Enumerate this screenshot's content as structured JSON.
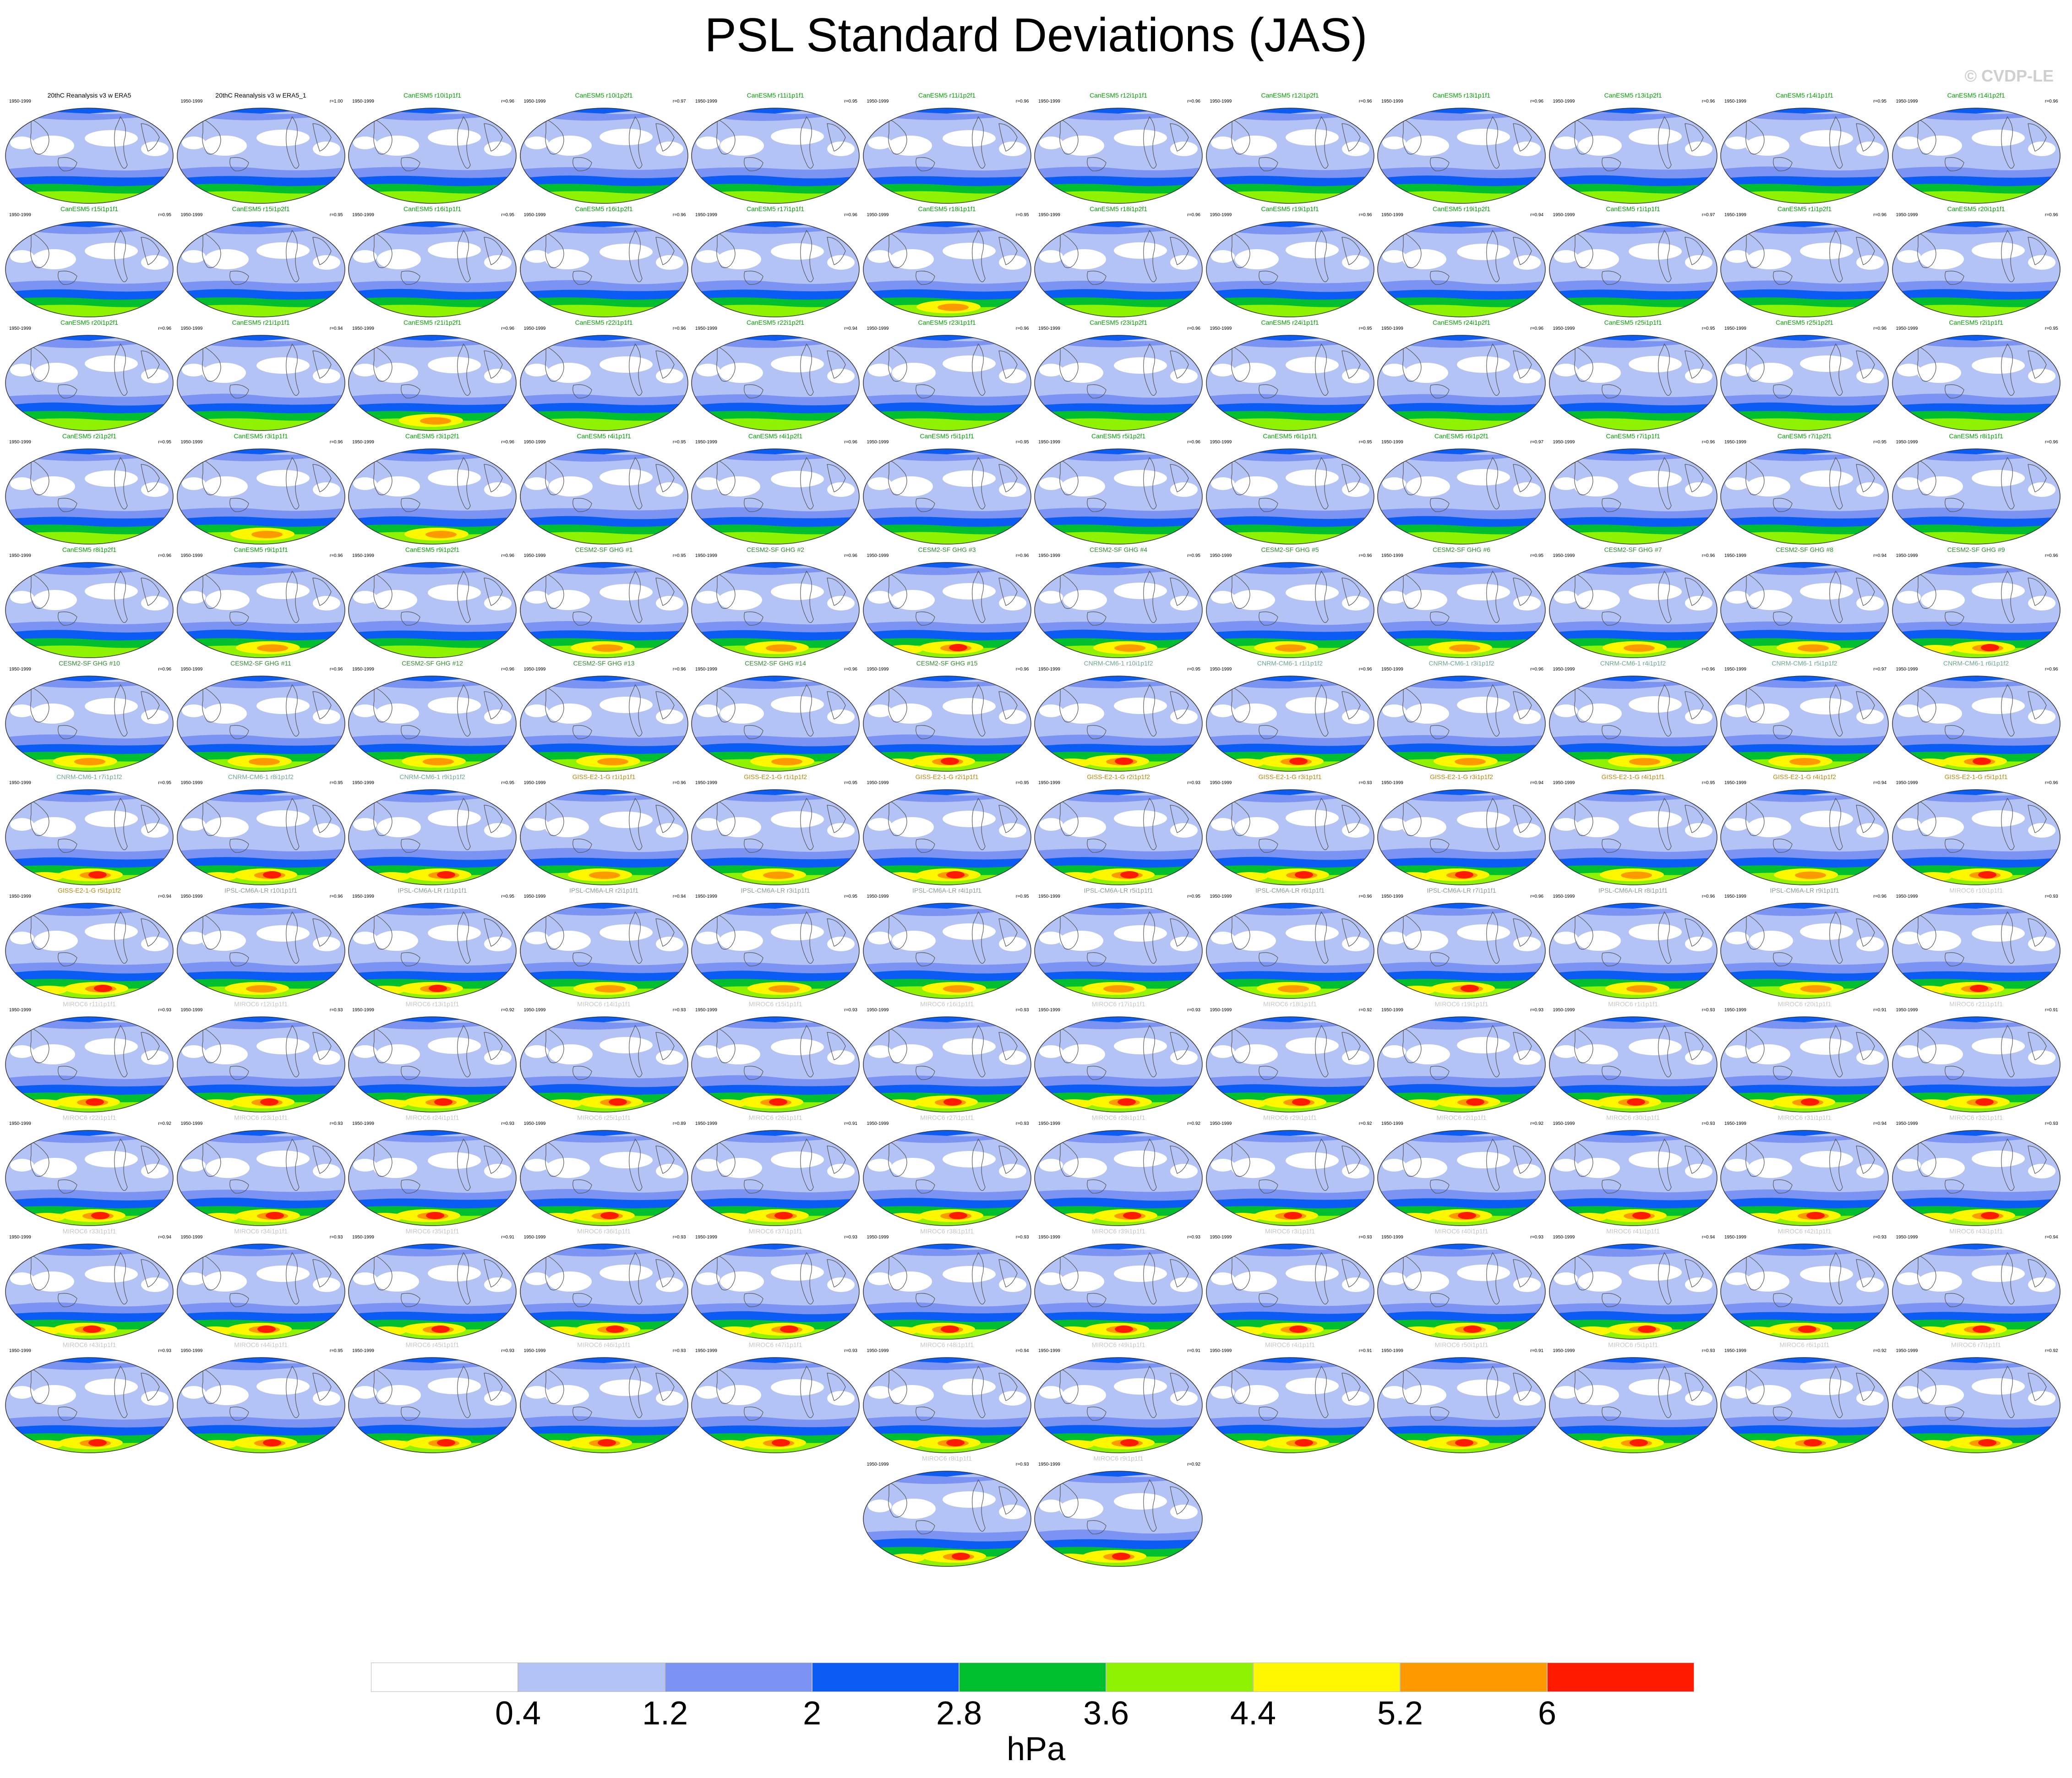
{
  "title": "PSL Standard Deviations (JAS)",
  "copyright": "© CVDP-LE",
  "years": "1950-1999",
  "colorbar": {
    "colors": [
      "#ffffff",
      "#b4c3f5",
      "#7b93f2",
      "#0a5cf5",
      "#00bf2f",
      "#8ef200",
      "#fff700",
      "#ff9900",
      "#ff1a00"
    ],
    "ticks": [
      "0.4",
      "1.2",
      "2",
      "2.8",
      "3.6",
      "4.4",
      "5.2",
      "6"
    ],
    "units": "hPa"
  },
  "panels": [
    {
      "title": "20thC Reanalysis v3 w ERA5",
      "r": "",
      "tc": "#000000",
      "sev": 0
    },
    {
      "title": "20thC Reanalysis v3 w ERA5_1",
      "r": "r=1.00",
      "tc": "#000000",
      "sev": 0
    },
    {
      "title": "CanESM5 r10i1p1f1",
      "r": "r=0.96",
      "tc": "#00a000",
      "sev": 0
    },
    {
      "title": "CanESM5 r10i1p2f1",
      "r": "r=0.97",
      "tc": "#00a000",
      "sev": 0
    },
    {
      "title": "CanESM5 r11i1p1f1",
      "r": "r=0.95",
      "tc": "#00a000",
      "sev": 0
    },
    {
      "title": "CanESM5 r11i1p2f1",
      "r": "r=0.96",
      "tc": "#00a000",
      "sev": 0
    },
    {
      "title": "CanESM5 r12i1p1f1",
      "r": "r=0.96",
      "tc": "#00a000",
      "sev": 0
    },
    {
      "title": "CanESM5 r12i1p2f1",
      "r": "r=0.96",
      "tc": "#00a000",
      "sev": 0
    },
    {
      "title": "CanESM5 r13i1p1f1",
      "r": "r=0.96",
      "tc": "#00a000",
      "sev": 0
    },
    {
      "title": "CanESM5 r13i1p2f1",
      "r": "r=0.96",
      "tc": "#00a000",
      "sev": 0
    },
    {
      "title": "CanESM5 r14i1p1f1",
      "r": "r=0.95",
      "tc": "#00a000",
      "sev": 0
    },
    {
      "title": "CanESM5 r14i1p2f1",
      "r": "r=0.96",
      "tc": "#00a000",
      "sev": 0
    },
    {
      "title": "CanESM5 r15i1p1f1",
      "r": "r=0.95",
      "tc": "#00a000",
      "sev": 0
    },
    {
      "title": "CanESM5 r15i1p2f1",
      "r": "r=0.95",
      "tc": "#00a000",
      "sev": 0
    },
    {
      "title": "CanESM5 r16i1p1f1",
      "r": "r=0.95",
      "tc": "#00a000",
      "sev": 0
    },
    {
      "title": "CanESM5 r16i1p2f1",
      "r": "r=0.96",
      "tc": "#00a000",
      "sev": 0
    },
    {
      "title": "CanESM5 r17i1p1f1",
      "r": "r=0.96",
      "tc": "#00a000",
      "sev": 0
    },
    {
      "title": "CanESM5 r18i1p1f1",
      "r": "r=0.95",
      "tc": "#00a000",
      "sev": 1
    },
    {
      "title": "CanESM5 r18i1p2f1",
      "r": "r=0.96",
      "tc": "#00a000",
      "sev": 0
    },
    {
      "title": "CanESM5 r19i1p1f1",
      "r": "r=0.96",
      "tc": "#00a000",
      "sev": 0
    },
    {
      "title": "CanESM5 r19i1p2f1",
      "r": "r=0.94",
      "tc": "#00a000",
      "sev": 0
    },
    {
      "title": "CanESM5 r1i1p1f1",
      "r": "r=0.97",
      "tc": "#00a000",
      "sev": 0
    },
    {
      "title": "CanESM5 r1i1p2f1",
      "r": "r=0.96",
      "tc": "#00a000",
      "sev": 0
    },
    {
      "title": "CanESM5 r20i1p1f1",
      "r": "r=0.96",
      "tc": "#00a000",
      "sev": 0
    },
    {
      "title": "CanESM5 r20i1p2f1",
      "r": "r=0.96",
      "tc": "#00a000",
      "sev": 0
    },
    {
      "title": "CanESM5 r21i1p1f1",
      "r": "r=0.94",
      "tc": "#00a000",
      "sev": 0
    },
    {
      "title": "CanESM5 r21i1p2f1",
      "r": "r=0.96",
      "tc": "#00a000",
      "sev": 1
    },
    {
      "title": "CanESM5 r22i1p1f1",
      "r": "r=0.96",
      "tc": "#00a000",
      "sev": 0
    },
    {
      "title": "CanESM5 r22i1p2f1",
      "r": "r=0.94",
      "tc": "#00a000",
      "sev": 0
    },
    {
      "title": "CanESM5 r23i1p1f1",
      "r": "r=0.96",
      "tc": "#00a000",
      "sev": 0
    },
    {
      "title": "CanESM5 r23i1p2f1",
      "r": "r=0.96",
      "tc": "#00a000",
      "sev": 0
    },
    {
      "title": "CanESM5 r24i1p1f1",
      "r": "r=0.95",
      "tc": "#00a000",
      "sev": 0
    },
    {
      "title": "CanESM5 r24i1p2f1",
      "r": "r=0.96",
      "tc": "#00a000",
      "sev": 0
    },
    {
      "title": "CanESM5 r25i1p1f1",
      "r": "r=0.95",
      "tc": "#00a000",
      "sev": 0
    },
    {
      "title": "CanESM5 r25i1p2f1",
      "r": "r=0.96",
      "tc": "#00a000",
      "sev": 0
    },
    {
      "title": "CanESM5 r2i1p1f1",
      "r": "r=0.95",
      "tc": "#00a000",
      "sev": 0
    },
    {
      "title": "CanESM5 r2i1p2f1",
      "r": "r=0.95",
      "tc": "#00a000",
      "sev": 0
    },
    {
      "title": "CanESM5 r3i1p1f1",
      "r": "r=0.96",
      "tc": "#00a000",
      "sev": 1
    },
    {
      "title": "CanESM5 r3i1p2f1",
      "r": "r=0.96",
      "tc": "#00a000",
      "sev": 1
    },
    {
      "title": "CanESM5 r4i1p1f1",
      "r": "r=0.95",
      "tc": "#00a000",
      "sev": 0
    },
    {
      "title": "CanESM5 r4i1p2f1",
      "r": "r=0.96",
      "tc": "#00a000",
      "sev": 0
    },
    {
      "title": "CanESM5 r5i1p1f1",
      "r": "r=0.95",
      "tc": "#00a000",
      "sev": 0
    },
    {
      "title": "CanESM5 r5i1p2f1",
      "r": "r=0.96",
      "tc": "#00a000",
      "sev": 0
    },
    {
      "title": "CanESM5 r6i1p1f1",
      "r": "r=0.95",
      "tc": "#00a000",
      "sev": 0
    },
    {
      "title": "CanESM5 r6i1p2f1",
      "r": "r=0.97",
      "tc": "#00a000",
      "sev": 0
    },
    {
      "title": "CanESM5 r7i1p1f1",
      "r": "r=0.96",
      "tc": "#00a000",
      "sev": 0
    },
    {
      "title": "CanESM5 r7i1p2f1",
      "r": "r=0.95",
      "tc": "#00a000",
      "sev": 0
    },
    {
      "title": "CanESM5 r8i1p1f1",
      "r": "r=0.96",
      "tc": "#00a000",
      "sev": 0
    },
    {
      "title": "CanESM5 r8i1p2f1",
      "r": "r=0.96",
      "tc": "#00a000",
      "sev": 0
    },
    {
      "title": "CanESM5 r9i1p1f1",
      "r": "r=0.96",
      "tc": "#00a000",
      "sev": 1
    },
    {
      "title": "CanESM5 r9i1p2f1",
      "r": "r=0.96",
      "tc": "#00a000",
      "sev": 0
    },
    {
      "title": "CESM2-SF GHG #1",
      "r": "r=0.95",
      "tc": "#2e8b2e",
      "sev": 1
    },
    {
      "title": "CESM2-SF GHG #2",
      "r": "r=0.96",
      "tc": "#2e8b2e",
      "sev": 1
    },
    {
      "title": "CESM2-SF GHG #3",
      "r": "r=0.96",
      "tc": "#2e8b2e",
      "sev": 2
    },
    {
      "title": "CESM2-SF GHG #4",
      "r": "r=0.95",
      "tc": "#2e8b2e",
      "sev": 1
    },
    {
      "title": "CESM2-SF GHG #5",
      "r": "r=0.96",
      "tc": "#2e8b2e",
      "sev": 1
    },
    {
      "title": "CESM2-SF GHG #6",
      "r": "r=0.95",
      "tc": "#2e8b2e",
      "sev": 1
    },
    {
      "title": "CESM2-SF GHG #7",
      "r": "r=0.96",
      "tc": "#2e8b2e",
      "sev": 1
    },
    {
      "title": "CESM2-SF GHG #8",
      "r": "r=0.94",
      "tc": "#2e8b2e",
      "sev": 1
    },
    {
      "title": "CESM2-SF GHG #9",
      "r": "r=0.96",
      "tc": "#2e8b2e",
      "sev": 2
    },
    {
      "title": "CESM2-SF GHG #10",
      "r": "r=0.96",
      "tc": "#2e8b2e",
      "sev": 1
    },
    {
      "title": "CESM2-SF GHG #11",
      "r": "r=0.96",
      "tc": "#2e8b2e",
      "sev": 1
    },
    {
      "title": "CESM2-SF GHG #12",
      "r": "r=0.96",
      "tc": "#2e8b2e",
      "sev": 1
    },
    {
      "title": "CESM2-SF GHG #13",
      "r": "r=0.96",
      "tc": "#2e8b2e",
      "sev": 1
    },
    {
      "title": "CESM2-SF GHG #14",
      "r": "r=0.96",
      "tc": "#2e8b2e",
      "sev": 1
    },
    {
      "title": "CESM2-SF GHG #15",
      "r": "r=0.96",
      "tc": "#2e8b2e",
      "sev": 2
    },
    {
      "title": "CNRM-CM6-1 r10i1p1f2",
      "r": "r=0.95",
      "tc": "#6aa88c",
      "sev": 2
    },
    {
      "title": "CNRM-CM6-1 r1i1p1f2",
      "r": "r=0.96",
      "tc": "#6aa88c",
      "sev": 2
    },
    {
      "title": "CNRM-CM6-1 r3i1p1f2",
      "r": "r=0.96",
      "tc": "#6aa88c",
      "sev": 1
    },
    {
      "title": "CNRM-CM6-1 r4i1p1f2",
      "r": "r=0.96",
      "tc": "#6aa88c",
      "sev": 1
    },
    {
      "title": "CNRM-CM6-1 r5i1p1f2",
      "r": "r=0.97",
      "tc": "#6aa88c",
      "sev": 1
    },
    {
      "title": "CNRM-CM6-1 r6i1p1f2",
      "r": "r=0.96",
      "tc": "#6aa88c",
      "sev": 2
    },
    {
      "title": "CNRM-CM6-1 r7i1p1f2",
      "r": "r=0.95",
      "tc": "#6aa88c",
      "sev": 2
    },
    {
      "title": "CNRM-CM6-1 r8i1p1f2",
      "r": "r=0.95",
      "tc": "#6aa88c",
      "sev": 2
    },
    {
      "title": "CNRM-CM6-1 r9i1p1f2",
      "r": "r=0.95",
      "tc": "#6aa88c",
      "sev": 2
    },
    {
      "title": "GISS-E2-1-G r1i1p1f1",
      "r": "r=0.96",
      "tc": "#b8860b",
      "sev": 1
    },
    {
      "title": "GISS-E2-1-G r1i1p1f2",
      "r": "r=0.95",
      "tc": "#b8860b",
      "sev": 1
    },
    {
      "title": "GISS-E2-1-G r2i1p1f1",
      "r": "r=0.95",
      "tc": "#b8860b",
      "sev": 2
    },
    {
      "title": "GISS-E2-1-G r2i1p1f2",
      "r": "r=0.93",
      "tc": "#b8860b",
      "sev": 2
    },
    {
      "title": "GISS-E2-1-G r3i1p1f1",
      "r": "r=0.93",
      "tc": "#b8860b",
      "sev": 2
    },
    {
      "title": "GISS-E2-1-G r3i1p1f2",
      "r": "r=0.94",
      "tc": "#b8860b",
      "sev": 2
    },
    {
      "title": "GISS-E2-1-G r4i1p1f1",
      "r": "r=0.95",
      "tc": "#b8860b",
      "sev": 1
    },
    {
      "title": "GISS-E2-1-G r4i1p1f2",
      "r": "r=0.94",
      "tc": "#b8860b",
      "sev": 1
    },
    {
      "title": "GISS-E2-1-G r5i1p1f1",
      "r": "r=0.96",
      "tc": "#b8860b",
      "sev": 2
    },
    {
      "title": "GISS-E2-1-G r5i1p1f2",
      "r": "r=0.94",
      "tc": "#b8860b",
      "sev": 2
    },
    {
      "title": "IPSL-CM6A-LR r10i1p1f1",
      "r": "r=0.96",
      "tc": "#8a9a9a",
      "sev": 1
    },
    {
      "title": "IPSL-CM6A-LR r1i1p1f1",
      "r": "r=0.95",
      "tc": "#8a9a9a",
      "sev": 2
    },
    {
      "title": "IPSL-CM6A-LR r2i1p1f1",
      "r": "r=0.94",
      "tc": "#8a9a9a",
      "sev": 1
    },
    {
      "title": "IPSL-CM6A-LR r3i1p1f1",
      "r": "r=0.95",
      "tc": "#8a9a9a",
      "sev": 1
    },
    {
      "title": "IPSL-CM6A-LR r4i1p1f1",
      "r": "r=0.95",
      "tc": "#8a9a9a",
      "sev": 1
    },
    {
      "title": "IPSL-CM6A-LR r5i1p1f1",
      "r": "r=0.95",
      "tc": "#8a9a9a",
      "sev": 1
    },
    {
      "title": "IPSL-CM6A-LR r6i1p1f1",
      "r": "r=0.96",
      "tc": "#8a9a9a",
      "sev": 1
    },
    {
      "title": "IPSL-CM6A-LR r7i1p1f1",
      "r": "r=0.96",
      "tc": "#8a9a9a",
      "sev": 2
    },
    {
      "title": "IPSL-CM6A-LR r8i1p1f1",
      "r": "r=0.96",
      "tc": "#8a9a9a",
      "sev": 1
    },
    {
      "title": "IPSL-CM6A-LR r9i1p1f1",
      "r": "r=0.96",
      "tc": "#8a9a9a",
      "sev": 1
    },
    {
      "title": "MIROC6 r10i1p1f1",
      "r": "r=0.93",
      "tc": "#c6c6c6",
      "sev": 2
    },
    {
      "title": "MIROC6 r11i1p1f1",
      "r": "r=0.93",
      "tc": "#c6c6c6",
      "sev": 2
    },
    {
      "title": "MIROC6 r12i1p1f1",
      "r": "r=0.93",
      "tc": "#c6c6c6",
      "sev": 2
    },
    {
      "title": "MIROC6 r13i1p1f1",
      "r": "r=0.92",
      "tc": "#c6c6c6",
      "sev": 2
    },
    {
      "title": "MIROC6 r14i1p1f1",
      "r": "r=0.93",
      "tc": "#c6c6c6",
      "sev": 2
    },
    {
      "title": "MIROC6 r15i1p1f1",
      "r": "r=0.93",
      "tc": "#c6c6c6",
      "sev": 2
    },
    {
      "title": "MIROC6 r16i1p1f1",
      "r": "r=0.93",
      "tc": "#c6c6c6",
      "sev": 2
    },
    {
      "title": "MIROC6 r17i1p1f1",
      "r": "r=0.93",
      "tc": "#c6c6c6",
      "sev": 2
    },
    {
      "title": "MIROC6 r18i1p1f1",
      "r": "r=0.92",
      "tc": "#c6c6c6",
      "sev": 2
    },
    {
      "title": "MIROC6 r19i1p1f1",
      "r": "r=0.93",
      "tc": "#c6c6c6",
      "sev": 2
    },
    {
      "title": "MIROC6 r1i1p1f1",
      "r": "r=0.93",
      "tc": "#c6c6c6",
      "sev": 2
    },
    {
      "title": "MIROC6 r20i1p1f1",
      "r": "r=0.91",
      "tc": "#c6c6c6",
      "sev": 2
    },
    {
      "title": "MIROC6 r21i1p1f1",
      "r": "r=0.91",
      "tc": "#c6c6c6",
      "sev": 2
    },
    {
      "title": "MIROC6 r22i1p1f1",
      "r": "r=0.92",
      "tc": "#c6c6c6",
      "sev": 2
    },
    {
      "title": "MIROC6 r23i1p1f1",
      "r": "r=0.93",
      "tc": "#c6c6c6",
      "sev": 2
    },
    {
      "title": "MIROC6 r24i1p1f1",
      "r": "r=0.93",
      "tc": "#c6c6c6",
      "sev": 2
    },
    {
      "title": "MIROC6 r25i1p1f1",
      "r": "r=0.89",
      "tc": "#c6c6c6",
      "sev": 2
    },
    {
      "title": "MIROC6 r26i1p1f1",
      "r": "r=0.91",
      "tc": "#c6c6c6",
      "sev": 2
    },
    {
      "title": "MIROC6 r27i1p1f1",
      "r": "r=0.93",
      "tc": "#c6c6c6",
      "sev": 2
    },
    {
      "title": "MIROC6 r28i1p1f1",
      "r": "r=0.92",
      "tc": "#c6c6c6",
      "sev": 2
    },
    {
      "title": "MIROC6 r29i1p1f1",
      "r": "r=0.92",
      "tc": "#c6c6c6",
      "sev": 2
    },
    {
      "title": "MIROC6 r2i1p1f1",
      "r": "r=0.92",
      "tc": "#c6c6c6",
      "sev": 2
    },
    {
      "title": "MIROC6 r30i1p1f1",
      "r": "r=0.93",
      "tc": "#c6c6c6",
      "sev": 2
    },
    {
      "title": "MIROC6 r31i1p1f1",
      "r": "r=0.94",
      "tc": "#c6c6c6",
      "sev": 2
    },
    {
      "title": "MIROC6 r32i1p1f1",
      "r": "r=0.93",
      "tc": "#c6c6c6",
      "sev": 2
    },
    {
      "title": "MIROC6 r33i1p1f1",
      "r": "r=0.94",
      "tc": "#c6c6c6",
      "sev": 2
    },
    {
      "title": "MIROC6 r34i1p1f1",
      "r": "r=0.93",
      "tc": "#c6c6c6",
      "sev": 2
    },
    {
      "title": "MIROC6 r35i1p1f1",
      "r": "r=0.91",
      "tc": "#c6c6c6",
      "sev": 2
    },
    {
      "title": "MIROC6 r36i1p1f1",
      "r": "r=0.93",
      "tc": "#c6c6c6",
      "sev": 2
    },
    {
      "title": "MIROC6 r37i1p1f1",
      "r": "r=0.93",
      "tc": "#c6c6c6",
      "sev": 2
    },
    {
      "title": "MIROC6 r38i1p1f1",
      "r": "r=0.93",
      "tc": "#c6c6c6",
      "sev": 2
    },
    {
      "title": "MIROC6 r39i1p1f1",
      "r": "r=0.93",
      "tc": "#c6c6c6",
      "sev": 2
    },
    {
      "title": "MIROC6 r3i1p1f1",
      "r": "r=0.93",
      "tc": "#c6c6c6",
      "sev": 2
    },
    {
      "title": "MIROC6 r40i1p1f1",
      "r": "r=0.93",
      "tc": "#c6c6c6",
      "sev": 2
    },
    {
      "title": "MIROC6 r41i1p1f1",
      "r": "r=0.94",
      "tc": "#c6c6c6",
      "sev": 2
    },
    {
      "title": "MIROC6 r42i1p1f1",
      "r": "r=0.93",
      "tc": "#c6c6c6",
      "sev": 2
    },
    {
      "title": "MIROC6 r43i1p1f1",
      "r": "r=0.94",
      "tc": "#c6c6c6",
      "sev": 2
    },
    {
      "title": "MIROC6 r43i1p1f1",
      "r": "r=0.93",
      "tc": "#c6c6c6",
      "sev": 2
    },
    {
      "title": "MIROC6 r44i1p1f1",
      "r": "r=0.95",
      "tc": "#c6c6c6",
      "sev": 2
    },
    {
      "title": "MIROC6 r45i1p1f1",
      "r": "r=0.93",
      "tc": "#c6c6c6",
      "sev": 2
    },
    {
      "title": "MIROC6 r46i1p1f1",
      "r": "r=0.93",
      "tc": "#c6c6c6",
      "sev": 2
    },
    {
      "title": "MIROC6 r47i1p1f1",
      "r": "r=0.93",
      "tc": "#c6c6c6",
      "sev": 2
    },
    {
      "title": "MIROC6 r48i1p1f1",
      "r": "r=0.94",
      "tc": "#c6c6c6",
      "sev": 2
    },
    {
      "title": "MIROC6 r49i1p1f1",
      "r": "r=0.91",
      "tc": "#c6c6c6",
      "sev": 2
    },
    {
      "title": "MIROC6 r4i1p1f1",
      "r": "r=0.91",
      "tc": "#c6c6c6",
      "sev": 2
    },
    {
      "title": "MIROC6 r50i1p1f1",
      "r": "r=0.91",
      "tc": "#c6c6c6",
      "sev": 2
    },
    {
      "title": "MIROC6 r5i1p1f1",
      "r": "r=0.93",
      "tc": "#c6c6c6",
      "sev": 2
    },
    {
      "title": "MIROC6 r6i1p1f1",
      "r": "r=0.92",
      "tc": "#c6c6c6",
      "sev": 2
    },
    {
      "title": "MIROC6 r7i1p1f1",
      "r": "r=0.92",
      "tc": "#c6c6c6",
      "sev": 2
    },
    {
      "title": "MIROC6 r8i1p1f1",
      "r": "r=0.93",
      "tc": "#c6c6c6",
      "sev": 2
    },
    {
      "title": "MIROC6 r9i1p1f1",
      "r": "r=0.92",
      "tc": "#c6c6c6",
      "sev": 2
    }
  ]
}
